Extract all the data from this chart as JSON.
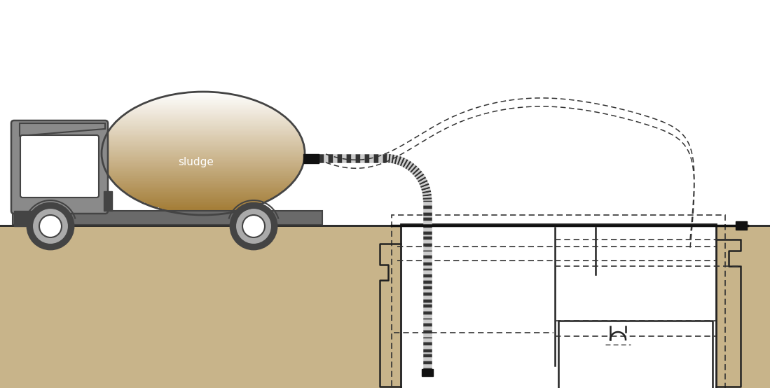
{
  "bg_color": "#ffffff",
  "ground_color": "#c8b48a",
  "ground_line_color": "#222222",
  "truck_body_color": "#8a8a8a",
  "truck_dark_color": "#444444",
  "truck_bed_color": "#6a6a6a",
  "wheel_outer_color": "#aaaaaa",
  "wheel_inner_color": "#ffffff",
  "tank_brown": "#a07830",
  "tank_label": "sludge",
  "tank_label_color": "#ffffff",
  "hose_dark": "#333333",
  "hose_light": "#cccccc",
  "pit_line_color": "#222222",
  "dash_color": "#333333",
  "nozzle_color": "#111111"
}
